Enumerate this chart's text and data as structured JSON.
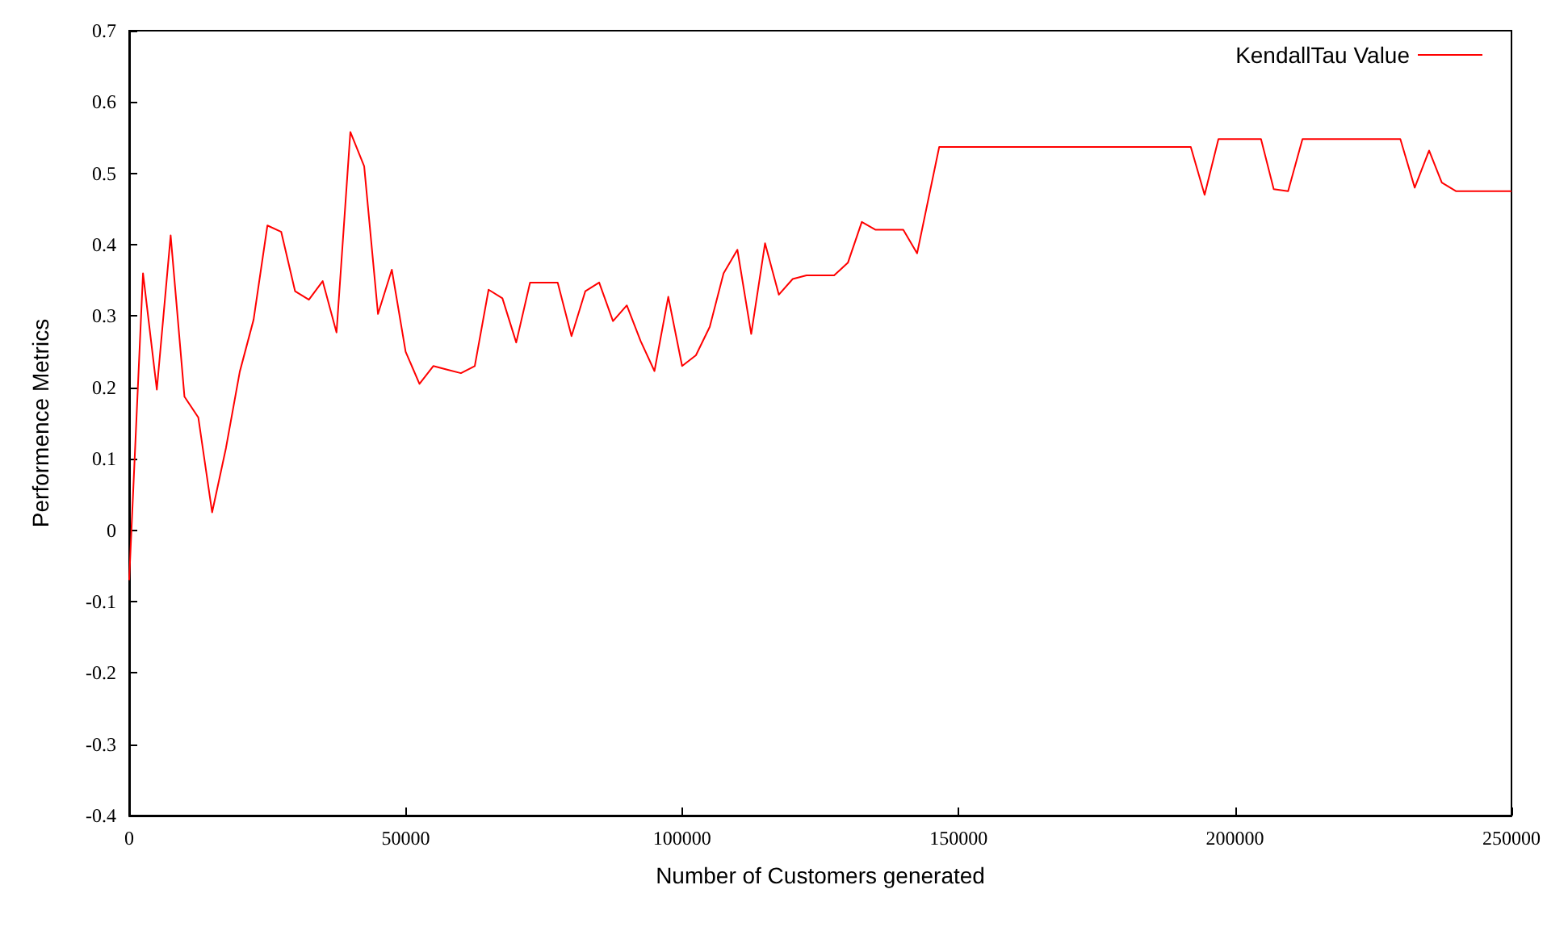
{
  "chart_data": {
    "type": "line",
    "xlabel": "Number of Customers generated",
    "ylabel": "Performence Metrics",
    "xlim": [
      0,
      250000
    ],
    "xticks": [
      0,
      50000,
      100000,
      150000,
      200000,
      250000
    ],
    "ylim": [
      -0.4,
      0.7
    ],
    "yticks": [
      -0.4,
      -0.3,
      -0.2,
      -0.1,
      0,
      0.1,
      0.2,
      0.3,
      0.4,
      0.5,
      0.6,
      0.7
    ],
    "grid": false,
    "legend": "top right",
    "marker": "none",
    "line_style": "solid",
    "x": [
      0,
      2500,
      5000,
      7500,
      10000,
      12500,
      15000,
      17500,
      20000,
      22500,
      25000,
      27500,
      30000,
      32500,
      35000,
      37500,
      40000,
      42500,
      45000,
      47500,
      50000,
      52500,
      55000,
      57500,
      60000,
      62500,
      65000,
      67500,
      70000,
      72500,
      75000,
      77500,
      80000,
      82500,
      85000,
      87500,
      90000,
      92500,
      95000,
      97500,
      100000,
      102500,
      105000,
      107500,
      110000,
      112500,
      115000,
      117500,
      120000,
      122500,
      125000,
      127500,
      130000,
      132500,
      135000,
      137500,
      140000,
      142500,
      146500,
      192000,
      194500,
      197000,
      204700,
      207000,
      209600,
      212200,
      229900,
      232500,
      235100,
      237400,
      240000,
      250000
    ],
    "series": [
      {
        "name": "KendallTau Value",
        "color": "#ff0000",
        "values": [
          -0.07,
          0.36,
          0.197,
          0.413,
          0.187,
          0.158,
          0.025,
          0.115,
          0.222,
          0.295,
          0.427,
          0.418,
          0.335,
          0.323,
          0.349,
          0.277,
          0.558,
          0.51,
          0.303,
          0.365,
          0.25,
          0.205,
          0.23,
          0.225,
          0.22,
          0.23,
          0.337,
          0.325,
          0.263,
          0.347,
          0.347,
          0.347,
          0.272,
          0.335,
          0.347,
          0.293,
          0.315,
          0.265,
          0.223,
          0.327,
          0.23,
          0.245,
          0.285,
          0.36,
          0.393,
          0.275,
          0.402,
          0.33,
          0.352,
          0.357,
          0.357,
          0.357,
          0.375,
          0.432,
          0.421,
          0.421,
          0.421,
          0.388,
          0.537,
          0.537,
          0.47,
          0.548,
          0.548,
          0.478,
          0.475,
          0.548,
          0.548,
          0.48,
          0.532,
          0.487,
          0.475,
          0.475
        ]
      }
    ]
  }
}
